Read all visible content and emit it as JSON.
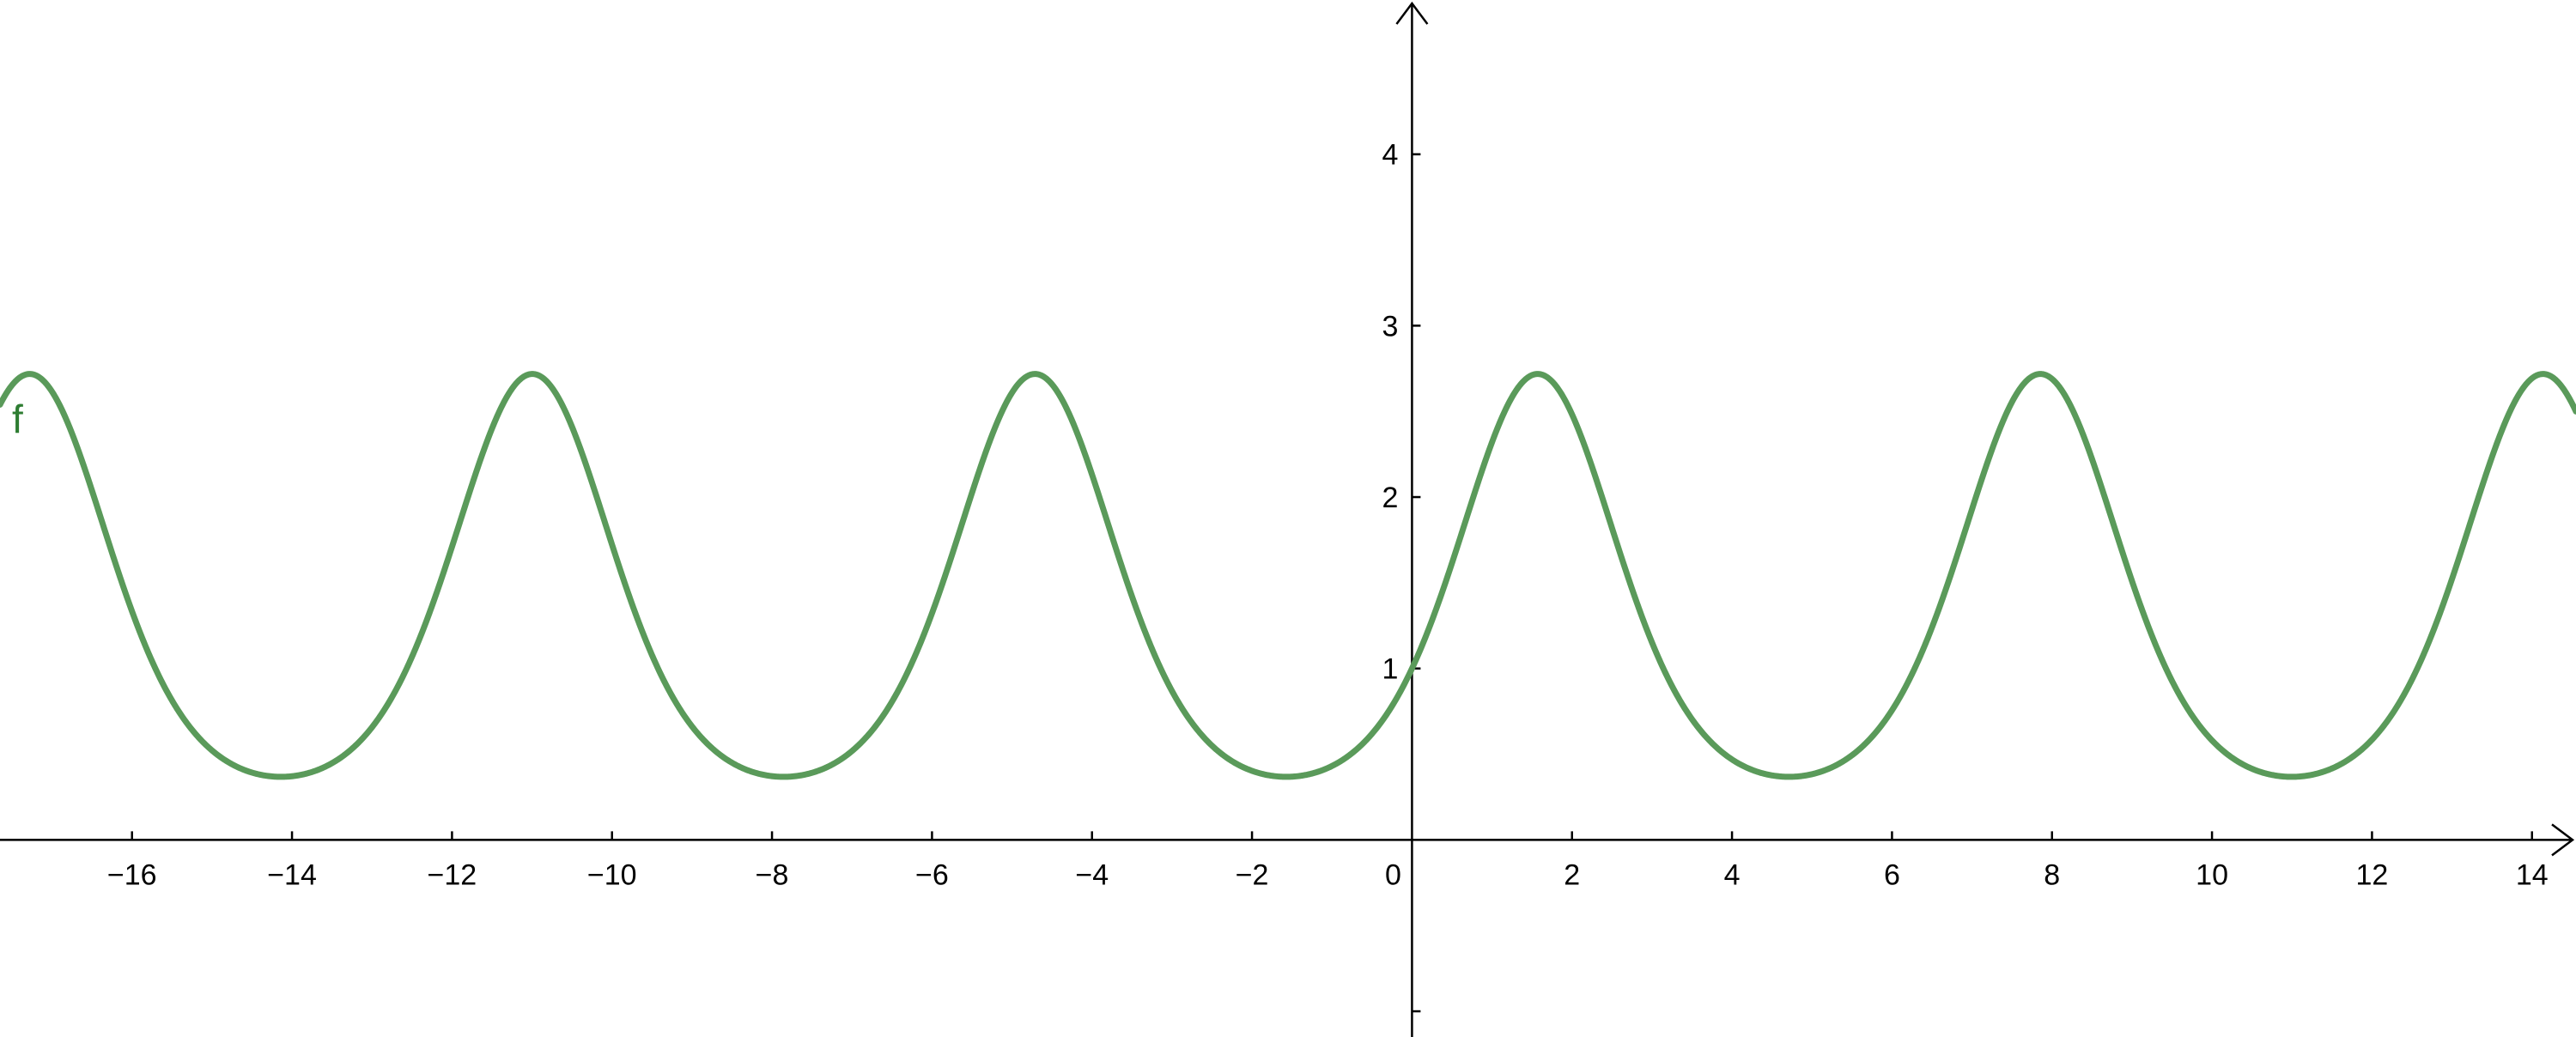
{
  "chart_data": {
    "type": "line",
    "title": "",
    "xlabel": "",
    "ylabel": "",
    "xlim": [
      -17.65,
      14.55
    ],
    "ylim": [
      -1.15,
      4.9
    ],
    "x_ticks": [
      -16,
      -14,
      -12,
      -10,
      -8,
      -6,
      -4,
      -2,
      0,
      2,
      4,
      6,
      8,
      10,
      12,
      14
    ],
    "x_tick_labels": [
      "−16",
      "−14",
      "−12",
      "−10",
      "−8",
      "−6",
      "−4",
      "−2",
      "0",
      "2",
      "4",
      "6",
      "8",
      "10",
      "12",
      "14"
    ],
    "y_ticks": [
      -1,
      1,
      2,
      3,
      4
    ],
    "y_tick_labels": [
      "",
      "1",
      "2",
      "3",
      "4"
    ],
    "grid": false,
    "series": [
      {
        "name": "f",
        "function": "e^(sin(x))",
        "color": "#5a9a5a",
        "label_color": "#2e7d32",
        "x": [
          -17.6,
          -17.28,
          -15.7,
          -14.14,
          -12.57,
          -11.0,
          -9.42,
          -7.85,
          -6.28,
          -4.71,
          -3.14,
          -1.57,
          0,
          1.57,
          3.14,
          4.71,
          6.28,
          7.85,
          9.42,
          11.0,
          12.57,
          14.14,
          14.55
        ],
        "y": [
          2.55,
          2.72,
          1.0,
          0.37,
          1.0,
          2.72,
          1.0,
          0.37,
          1.0,
          2.72,
          1.0,
          0.37,
          1.0,
          2.72,
          1.0,
          0.37,
          1.0,
          2.72,
          1.0,
          0.37,
          1.0,
          2.72,
          2.48
        ]
      }
    ]
  }
}
